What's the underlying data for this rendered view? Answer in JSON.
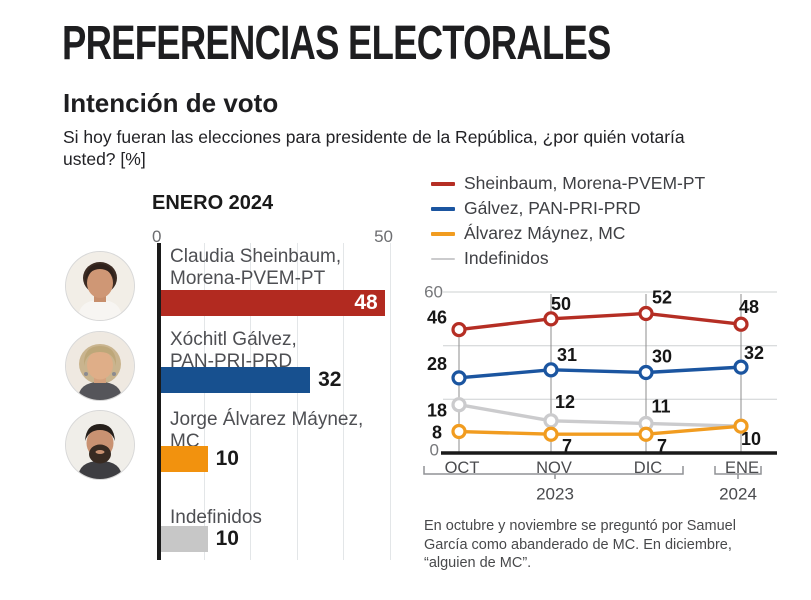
{
  "header": {
    "title": "PREFERENCIAS ELECTORALES",
    "subtitle": "Intención de voto",
    "question_line1": "Si hoy fueran las elecciones para presidente de la República, ¿por quién votaría",
    "question_line2": "usted? [%]"
  },
  "enero": {
    "rows": [
      {
        "name": "Claudia Sheinbaum,",
        "party": "Morena-PVEM-PT"
      },
      {
        "name": "Xóchitl Gálvez,",
        "party": "PAN-PRI-PRD"
      },
      {
        "name": "Jorge Álvarez Máynez,",
        "party": "MC"
      },
      {
        "name": "Indefinidos",
        "party": ""
      }
    ]
  },
  "footnote": {
    "lines": [
      "En octubre y noviembre se preguntó por Samuel",
      "García como abanderado de MC. En diciembre,",
      "“alguien de MC”."
    ]
  },
  "chart_data": [
    {
      "type": "bar",
      "title": "ENERO 2024",
      "orientation": "horizontal",
      "categories": [
        "Claudia Sheinbaum, Morena-PVEM-PT",
        "Xóchitl Gálvez, PAN-PRI-PRD",
        "Jorge Álvarez Máynez, MC",
        "Indefinidos"
      ],
      "values": [
        48,
        32,
        10,
        10
      ],
      "colors": [
        "#b22a20",
        "#17508f",
        "#f2920e",
        "#c7c7c7"
      ],
      "xlim": [
        0,
        50
      ],
      "grid_step": 10,
      "value_label_style": [
        "white-inside",
        "black-outside",
        "black-outside",
        "black-outside"
      ]
    },
    {
      "type": "line",
      "x": [
        "OCT",
        "NOV",
        "DIC",
        "ENE"
      ],
      "x_year_groups": [
        {
          "label": "2023",
          "months": [
            "OCT",
            "NOV",
            "DIC"
          ]
        },
        {
          "label": "2024",
          "months": [
            "ENE"
          ]
        }
      ],
      "series": [
        {
          "name": "Sheinbaum, Morena-PVEM-PT",
          "color": "#b52e24",
          "values": [
            46,
            50,
            52,
            48
          ]
        },
        {
          "name": "Gálvez, PAN-PRI-PRD",
          "color": "#1b55a0",
          "values": [
            28,
            31,
            30,
            32
          ]
        },
        {
          "name": "Álvarez Máynez, MC",
          "color": "#f19c20",
          "values": [
            8,
            7,
            7,
            10
          ]
        },
        {
          "name": "Indefinidos",
          "color": "#cbcbcd",
          "values": [
            18,
            12,
            11,
            10
          ]
        }
      ],
      "ylim": [
        0,
        60
      ],
      "gridlines_y": [
        0,
        20,
        40,
        60
      ],
      "legend_position": "top",
      "note": "En octubre y noviembre se preguntó por Samuel García como abanderado de MC. En diciembre, “alguien de MC”."
    }
  ]
}
